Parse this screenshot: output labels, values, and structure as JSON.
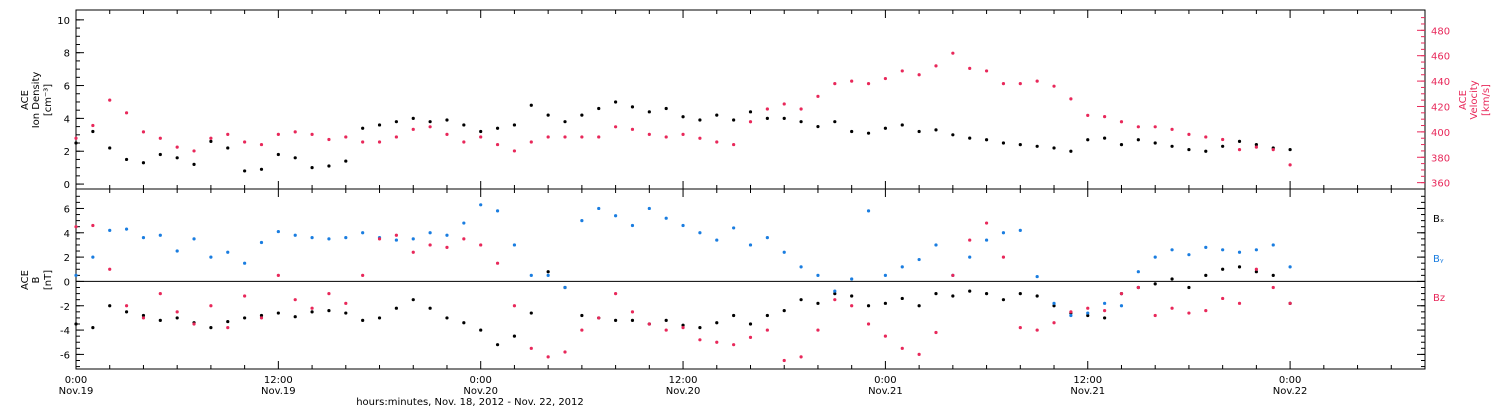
{
  "colors": {
    "black": "#000000",
    "pink": "#e8285a",
    "blue": "#1a7de0",
    "frame": "#000000"
  },
  "chart_data": [
    {
      "type": "scatter",
      "panel": "top",
      "ylabel_left": [
        "ACE",
        "Ion Density",
        "[cm⁻³]"
      ],
      "ylabel_right": [
        "ACE",
        "Velocity",
        "[km/s]"
      ],
      "xlim_hours": [
        0,
        80
      ],
      "ylim_left": [
        -0.3,
        10.6
      ],
      "yticks_left": [
        "0",
        "2",
        "4",
        "6",
        "8",
        "10"
      ],
      "ylim_right": [
        355,
        496
      ],
      "yticks_right": [
        "360",
        "380",
        "400",
        "420",
        "440",
        "460",
        "480"
      ],
      "series": [
        {
          "name": "Ion Density",
          "color": "#000000",
          "axis": "left",
          "x": [
            0,
            1,
            2,
            3,
            4,
            5,
            6,
            7,
            8,
            9,
            10,
            11,
            12,
            13,
            14,
            15,
            16,
            17,
            18,
            19,
            20,
            21,
            22,
            23,
            24,
            25,
            26,
            27,
            28,
            29,
            30,
            31,
            32,
            33,
            34,
            35,
            36,
            37,
            38,
            39,
            40,
            41,
            42,
            43,
            44,
            45,
            46,
            47,
            48,
            49,
            50,
            51,
            52,
            53,
            54,
            55,
            56,
            57,
            58,
            59,
            60,
            61,
            62,
            63,
            64,
            65,
            66,
            67,
            68,
            69,
            70,
            71,
            72
          ],
          "y": [
            2.5,
            3.2,
            2.2,
            1.5,
            1.3,
            1.8,
            1.6,
            1.2,
            2.6,
            2.2,
            0.8,
            0.9,
            1.8,
            1.6,
            1.0,
            1.1,
            1.4,
            3.4,
            3.6,
            3.8,
            4.0,
            3.8,
            3.9,
            3.6,
            3.2,
            3.4,
            3.6,
            4.8,
            4.2,
            3.8,
            4.2,
            4.6,
            5.0,
            4.7,
            4.4,
            4.6,
            4.1,
            3.9,
            4.2,
            3.9,
            4.4,
            4.0,
            4.0,
            3.8,
            3.5,
            3.8,
            3.2,
            3.1,
            3.4,
            3.6,
            3.2,
            3.3,
            3.0,
            2.8,
            2.7,
            2.5,
            2.4,
            2.3,
            2.2,
            2.0,
            2.7,
            2.8,
            2.4,
            2.7,
            2.5,
            2.3,
            2.1,
            2.0,
            2.3,
            2.6,
            2.4,
            2.2,
            2.1
          ]
        },
        {
          "name": "Velocity",
          "color": "#e8285a",
          "axis": "right",
          "x": [
            0,
            1,
            2,
            3,
            4,
            5,
            6,
            7,
            8,
            9,
            10,
            11,
            12,
            13,
            14,
            15,
            16,
            17,
            18,
            19,
            20,
            21,
            22,
            23,
            24,
            25,
            26,
            27,
            28,
            29,
            30,
            31,
            32,
            33,
            34,
            35,
            36,
            37,
            38,
            39,
            40,
            41,
            42,
            43,
            44,
            45,
            46,
            47,
            48,
            49,
            50,
            51,
            52,
            53,
            54,
            55,
            56,
            57,
            58,
            59,
            60,
            61,
            62,
            63,
            64,
            65,
            66,
            67,
            68,
            69,
            70,
            71,
            72
          ],
          "y": [
            395,
            405,
            425,
            415,
            400,
            395,
            388,
            385,
            395,
            398,
            392,
            390,
            398,
            400,
            398,
            394,
            396,
            392,
            392,
            396,
            402,
            404,
            398,
            392,
            396,
            390,
            385,
            392,
            396,
            396,
            396,
            396,
            404,
            402,
            398,
            396,
            398,
            395,
            392,
            390,
            408,
            418,
            422,
            418,
            428,
            438,
            440,
            438,
            442,
            448,
            445,
            452,
            462,
            450,
            448,
            438,
            438,
            440,
            436,
            426,
            413,
            412,
            408,
            404,
            404,
            402,
            398,
            396,
            394,
            386,
            388,
            386,
            374
          ]
        }
      ]
    },
    {
      "type": "scatter",
      "panel": "bottom",
      "ylabel": [
        "ACE",
        "B",
        "[nT]"
      ],
      "xlim_hours": [
        0,
        80
      ],
      "ylim": [
        -7.2,
        7.6
      ],
      "yticks": [
        "-6",
        "-4",
        "-2",
        "0",
        "2",
        "4",
        "6"
      ],
      "zero_line": true,
      "legend_position": "right",
      "series": [
        {
          "name": "Bₓ",
          "color": "#000000",
          "x": [
            0,
            1,
            2,
            3,
            4,
            5,
            6,
            7,
            8,
            9,
            10,
            11,
            12,
            13,
            14,
            15,
            16,
            17,
            18,
            19,
            20,
            21,
            22,
            23,
            24,
            25,
            26,
            27,
            28,
            29,
            30,
            31,
            32,
            33,
            34,
            35,
            36,
            37,
            38,
            39,
            40,
            41,
            42,
            43,
            44,
            45,
            46,
            47,
            48,
            49,
            50,
            51,
            52,
            53,
            54,
            55,
            56,
            57,
            58,
            59,
            60,
            61,
            62,
            63,
            64,
            65,
            66,
            67,
            68,
            69,
            70,
            71,
            72
          ],
          "y": [
            -3.5,
            -3.8,
            -2.0,
            -2.5,
            -2.8,
            -3.2,
            -3.0,
            -3.4,
            -3.8,
            -3.3,
            -3.0,
            -2.8,
            -2.6,
            -2.9,
            -2.5,
            -2.4,
            -2.6,
            -3.2,
            -3.0,
            -2.2,
            -1.5,
            -2.2,
            -3.0,
            -3.4,
            -4.0,
            -5.2,
            -4.5,
            -2.6,
            0.8,
            -0.5,
            -2.8,
            -3.0,
            -3.2,
            -3.2,
            -3.5,
            -3.2,
            -3.6,
            -3.8,
            -3.4,
            -2.8,
            -3.5,
            -2.8,
            -2.4,
            -1.5,
            -1.8,
            -1.0,
            -1.2,
            -2.0,
            -1.8,
            -1.4,
            -2.0,
            -1.0,
            -1.2,
            -0.8,
            -1.0,
            -1.5,
            -1.0,
            -1.2,
            -2.0,
            -2.6,
            -2.8,
            -3.0,
            -1.0,
            -0.5,
            -0.2,
            0.2,
            -0.5,
            0.5,
            1.0,
            1.2,
            0.8,
            0.5,
            -1.8
          ]
        },
        {
          "name": "Bᵧ",
          "color": "#1a7de0",
          "x": [
            0,
            1,
            2,
            3,
            4,
            5,
            6,
            7,
            8,
            9,
            10,
            11,
            12,
            13,
            14,
            15,
            16,
            17,
            18,
            19,
            20,
            21,
            22,
            23,
            24,
            25,
            26,
            27,
            28,
            29,
            30,
            31,
            32,
            33,
            34,
            35,
            36,
            37,
            38,
            39,
            40,
            41,
            42,
            43,
            44,
            45,
            46,
            47,
            48,
            49,
            50,
            51,
            52,
            53,
            54,
            55,
            56,
            57,
            58,
            59,
            60,
            61,
            62,
            63,
            64,
            65,
            66,
            67,
            68,
            69,
            70,
            71,
            72
          ],
          "y": [
            0.5,
            2.0,
            4.2,
            4.3,
            3.6,
            3.8,
            2.5,
            3.5,
            2.0,
            2.4,
            1.5,
            3.2,
            4.1,
            3.8,
            3.6,
            3.5,
            3.6,
            4.0,
            3.6,
            3.4,
            3.5,
            4.0,
            3.8,
            4.8,
            6.3,
            5.8,
            3.0,
            0.5,
            0.5,
            -0.5,
            5.0,
            6.0,
            5.4,
            4.6,
            6.0,
            5.2,
            4.6,
            4.0,
            3.4,
            4.4,
            3.0,
            3.6,
            2.4,
            1.2,
            0.5,
            -0.8,
            0.2,
            5.8,
            0.5,
            1.2,
            1.8,
            3.0,
            0.5,
            2.0,
            3.4,
            4.0,
            4.2,
            0.4,
            -1.8,
            -2.8,
            -2.6,
            -1.8,
            -2.0,
            0.8,
            2.0,
            2.6,
            2.2,
            2.8,
            2.6,
            2.4,
            2.6,
            3.0,
            1.2
          ]
        },
        {
          "name": "Bz",
          "color": "#e8285a",
          "x": [
            0,
            1,
            2,
            3,
            4,
            5,
            6,
            7,
            8,
            9,
            10,
            11,
            12,
            13,
            14,
            15,
            16,
            17,
            18,
            19,
            20,
            21,
            22,
            23,
            24,
            25,
            26,
            27,
            28,
            29,
            30,
            31,
            32,
            33,
            34,
            35,
            36,
            37,
            38,
            39,
            40,
            41,
            42,
            43,
            44,
            45,
            46,
            47,
            48,
            49,
            50,
            51,
            52,
            53,
            54,
            55,
            56,
            57,
            58,
            59,
            60,
            61,
            62,
            63,
            64,
            65,
            66,
            67,
            68,
            69,
            70,
            71,
            72
          ],
          "y": [
            4.5,
            4.6,
            1.0,
            -2.0,
            -3.0,
            -1.0,
            -2.5,
            -3.5,
            -2.0,
            -3.8,
            -1.2,
            -3.0,
            0.5,
            -1.5,
            -2.2,
            -1.0,
            -1.8,
            0.5,
            3.5,
            3.8,
            2.4,
            3.0,
            2.8,
            3.5,
            3.0,
            1.5,
            -2.0,
            -5.5,
            -6.2,
            -5.8,
            -4.0,
            -3.0,
            -1.0,
            -2.5,
            -3.5,
            -4.0,
            -3.8,
            -4.8,
            -5.0,
            -5.2,
            -4.6,
            -4.0,
            -6.5,
            -6.2,
            -4.0,
            -1.5,
            -2.0,
            -3.5,
            -4.5,
            -5.5,
            -6.0,
            -4.2,
            0.5,
            3.4,
            4.8,
            2.0,
            -3.8,
            -4.0,
            -3.4,
            -2.5,
            -2.2,
            -2.4,
            -1.0,
            -0.5,
            -2.8,
            -2.2,
            -2.6,
            -2.4,
            -1.4,
            -1.8,
            1.0,
            -0.5,
            -1.8
          ]
        }
      ]
    }
  ],
  "x_axis": {
    "tick_hours": [
      0,
      12,
      24,
      36,
      48,
      60,
      72
    ],
    "tick_labels": [
      [
        "0:00",
        "Nov.19"
      ],
      [
        "12:00",
        "Nov.19"
      ],
      [
        "0:00",
        "Nov.20"
      ],
      [
        "12:00",
        "Nov.20"
      ],
      [
        "0:00",
        "Nov.21"
      ],
      [
        "12:00",
        "Nov.21"
      ],
      [
        "0:00",
        "Nov.22"
      ]
    ],
    "title": "hours:minutes, Nov. 18, 2012 - Nov. 22, 2012"
  }
}
